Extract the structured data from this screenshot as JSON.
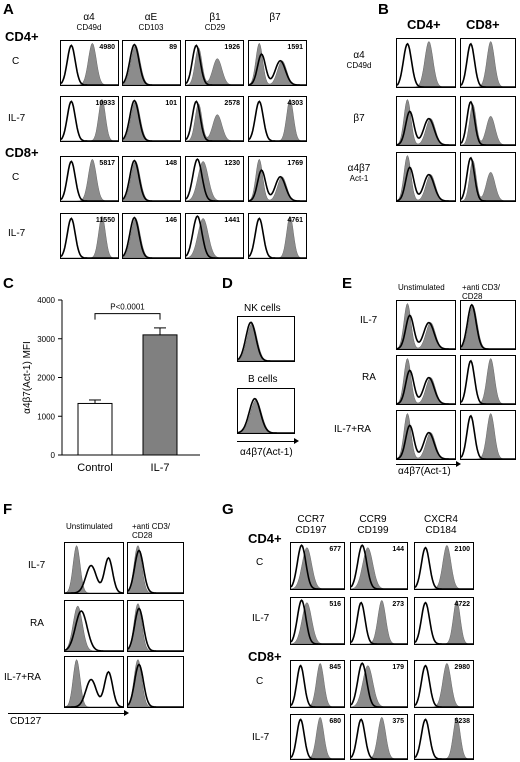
{
  "panels": {
    "A": "A",
    "B": "B",
    "C": "C",
    "D": "D",
    "E": "E",
    "F": "F",
    "G": "G"
  },
  "panelA": {
    "columns": [
      {
        "greek": "α4",
        "cd": "CD49d"
      },
      {
        "greek": "αE",
        "cd": "CD103"
      },
      {
        "greek": "β1",
        "cd": "CD29"
      },
      {
        "greek": "β7",
        "cd": ""
      }
    ],
    "groups": [
      {
        "label": "CD4+",
        "rows": [
          {
            "label": "C",
            "values": [
              "4980",
              "89",
              "1926",
              "1591"
            ]
          },
          {
            "label": "IL-7",
            "values": [
              "10933",
              "101",
              "2578",
              "4303"
            ]
          }
        ]
      },
      {
        "label": "CD8+",
        "rows": [
          {
            "label": "C",
            "values": [
              "5817",
              "148",
              "1230",
              "1769"
            ]
          },
          {
            "label": "IL-7",
            "values": [
              "11550",
              "146",
              "1441",
              "4761"
            ]
          }
        ]
      }
    ]
  },
  "panelB": {
    "columns": [
      "CD4+",
      "CD8+"
    ],
    "rows": [
      {
        "label": "α4",
        "sub": "CD49d"
      },
      {
        "label": "β7",
        "sub": ""
      },
      {
        "label": "α4β7",
        "sub": "Act-1"
      }
    ]
  },
  "chart_data": {
    "type": "bar",
    "categories": [
      "Control",
      "IL-7"
    ],
    "values": [
      1330,
      3100
    ],
    "errors": [
      90,
      180
    ],
    "colors": [
      "#ffffff",
      "#808080"
    ],
    "title": "",
    "xlabel": "",
    "ylabel": "α4β7(Act-1) MFI",
    "ylim": [
      0,
      4000
    ],
    "yticks": [
      "0",
      "1000",
      "2000",
      "3000",
      "4000"
    ],
    "annotation": "P<0.0001"
  },
  "panelD": {
    "rows": [
      "NK cells",
      "B cells"
    ],
    "xaxis": "α4β7(Act-1)"
  },
  "panelE": {
    "columns": [
      "Unstimulated",
      "+anti CD3/ CD28"
    ],
    "rows": [
      "IL-7",
      "RA",
      "IL-7+RA"
    ],
    "xaxis": "α4β7(Act-1)"
  },
  "panelF": {
    "columns": [
      "Unstimulated",
      "+anti CD3/ CD28"
    ],
    "rows": [
      "IL-7",
      "RA",
      "IL-7+RA"
    ],
    "xaxis": "CD127"
  },
  "panelG": {
    "columns": [
      {
        "name": "CCR7",
        "cd": "CD197"
      },
      {
        "name": "CCR9",
        "cd": "CD199"
      },
      {
        "name": "CXCR4",
        "cd": "CD184"
      }
    ],
    "groups": [
      {
        "label": "CD4+",
        "rows": [
          {
            "label": "C",
            "values": [
              "677",
              "144",
              "2100"
            ]
          },
          {
            "label": "IL-7",
            "values": [
              "516",
              "273",
              "4722"
            ]
          }
        ]
      },
      {
        "label": "CD8+",
        "rows": [
          {
            "label": "C",
            "values": [
              "845",
              "179",
              "2980"
            ]
          },
          {
            "label": "IL-7",
            "values": [
              "680",
              "375",
              "5238"
            ]
          }
        ]
      }
    ]
  }
}
